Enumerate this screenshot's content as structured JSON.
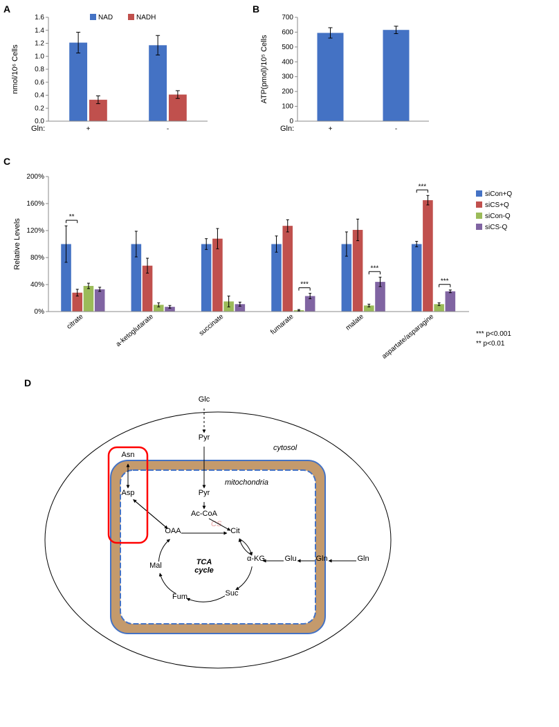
{
  "panelA": {
    "label": "A",
    "ylabel": "nmol/10⁶ Cells",
    "xaxis_label": "Gln:",
    "categories": [
      "+",
      "-"
    ],
    "ylim": [
      0,
      1.6
    ],
    "ytick_step": 0.2,
    "series": [
      {
        "name": "NAD",
        "color": "#4472c4",
        "values": [
          1.21,
          1.17
        ],
        "err": [
          0.16,
          0.15
        ]
      },
      {
        "name": "NADH",
        "color": "#c0504d",
        "values": [
          0.33,
          0.41
        ],
        "err": [
          0.06,
          0.06
        ]
      }
    ],
    "title_fontsize": 11,
    "label_fontsize": 11,
    "tick_fontsize": 10,
    "background_color": "#ffffff",
    "bar_width": 0.35
  },
  "panelB": {
    "label": "B",
    "ylabel": "ATP(pmol)/10⁵ Cells",
    "xaxis_label": "Gln:",
    "categories": [
      "+",
      "-"
    ],
    "ylim": [
      0,
      700
    ],
    "ytick_step": 100,
    "series": [
      {
        "name": "",
        "color": "#4472c4",
        "values": [
          595,
          615
        ],
        "err": [
          35,
          25
        ]
      }
    ],
    "label_fontsize": 11,
    "tick_fontsize": 10,
    "background_color": "#ffffff",
    "bar_width": 0.4
  },
  "panelC": {
    "label": "C",
    "ylabel": "Relative Levels",
    "ylim": [
      0,
      200
    ],
    "ytick_step": 40,
    "ytick_format": "percent",
    "categories": [
      "citrate",
      "a-ketoglutarate",
      "succinate",
      "fumarate",
      "malate",
      "aspartate/asparagine"
    ],
    "series": [
      {
        "name": "siCon+Q",
        "color": "#4472c4",
        "values": [
          100,
          100,
          100,
          100,
          100,
          100
        ],
        "err": [
          27,
          19,
          8,
          12,
          18,
          4
        ]
      },
      {
        "name": "siCS+Q",
        "color": "#c0504d",
        "values": [
          28,
          68,
          108,
          127,
          121,
          165
        ],
        "err": [
          5,
          11,
          15,
          9,
          16,
          7
        ]
      },
      {
        "name": "siCon-Q",
        "color": "#9bbb59",
        "values": [
          38,
          10,
          15,
          2,
          9,
          11
        ],
        "err": [
          4,
          3,
          8,
          1,
          2,
          2
        ]
      },
      {
        "name": "siCS-Q",
        "color": "#8064a2",
        "values": [
          33,
          7,
          11,
          23,
          44,
          30
        ],
        "err": [
          3,
          2,
          3,
          4,
          7,
          2
        ]
      }
    ],
    "significance": [
      {
        "group": 0,
        "pair": [
          0,
          1
        ],
        "label": "**"
      },
      {
        "group": 3,
        "pair": [
          2,
          3
        ],
        "label": "***"
      },
      {
        "group": 4,
        "pair": [
          2,
          3
        ],
        "label": "***"
      },
      {
        "group": 5,
        "pair": [
          0,
          1
        ],
        "label": "***"
      },
      {
        "group": 5,
        "pair": [
          2,
          3
        ],
        "label": "***"
      }
    ],
    "pvalue_legend": [
      "*** p<0.001",
      "**  p<0.01"
    ],
    "label_fontsize": 11,
    "tick_fontsize": 10,
    "background_color": "#ffffff",
    "bar_width": 0.18
  },
  "panelD": {
    "label": "D",
    "compartments": {
      "cytosol": "cytosol",
      "mitochondria": "mitochondria"
    },
    "tca_label": "TCA\ncycle",
    "membrane_fill": "#c49a6c",
    "membrane_stroke": "#4472c4",
    "highlight_stroke": "#ff0000",
    "cs_color": "#e8a0a0",
    "nodes": {
      "Glc": "Glc",
      "Pyr_c": "Pyr",
      "Pyr_m": "Pyr",
      "AcCoA": "Ac-CoA",
      "Cit": "Cit",
      "aKG": "α-KG",
      "Suc": "Suc",
      "Fum": "Fum",
      "Mal": "Mal",
      "OAA": "OAA",
      "Asp": "Asp",
      "Asn": "Asn",
      "Glu": "Glu",
      "Gln_m": "Gln",
      "Gln_c": "Gln",
      "CS": "CS"
    }
  }
}
